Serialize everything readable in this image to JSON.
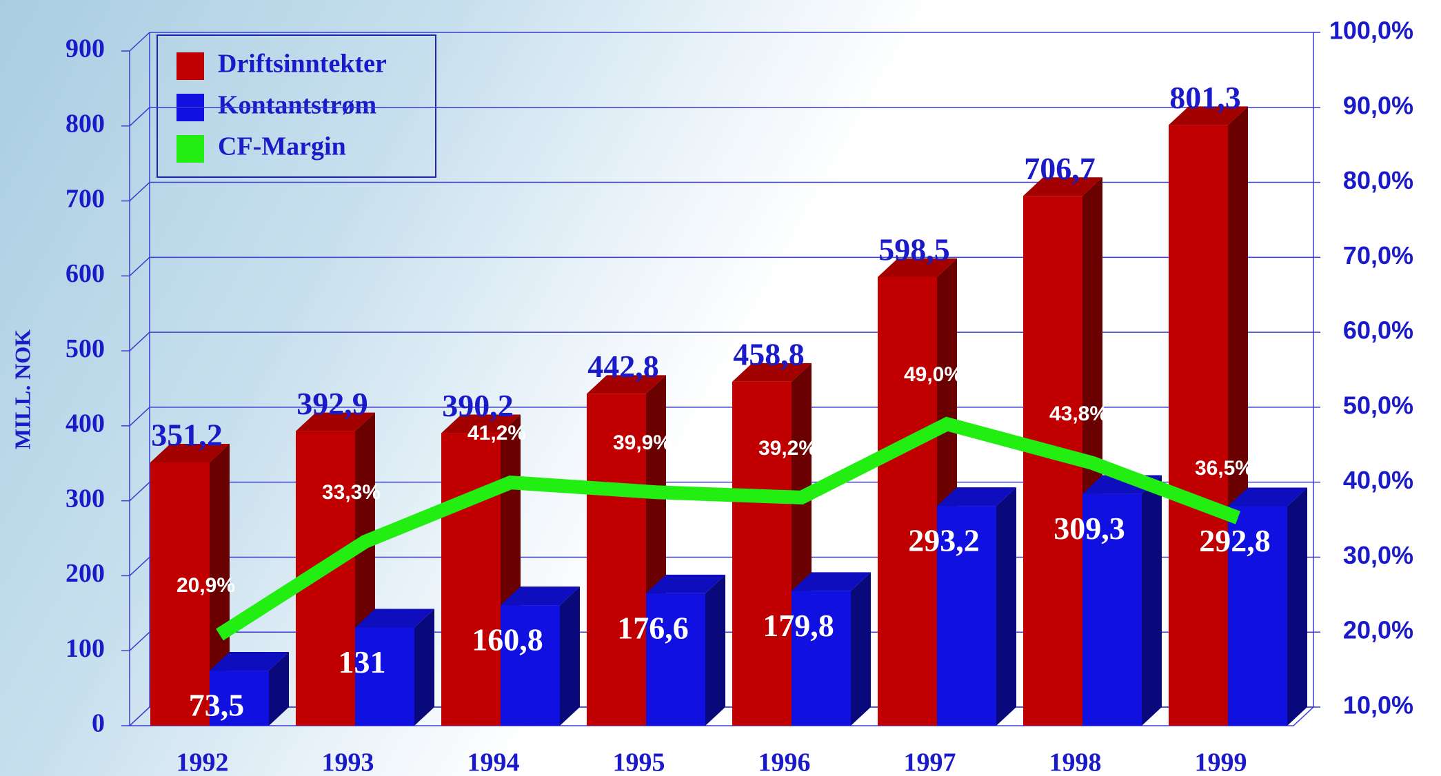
{
  "chart_data": {
    "type": "bar3d_line",
    "y_axis_label": "MILL. NOK",
    "categories": [
      "1992",
      "1993",
      "1994",
      "1995",
      "1996",
      "1997",
      "1998",
      "1999"
    ],
    "series": [
      {
        "name": "Driftsinntekter",
        "color": "#c00000",
        "values": [
          351.2,
          392.9,
          390.2,
          442.8,
          458.8,
          598.5,
          706.7,
          801.3
        ],
        "value_labels": [
          "351,2",
          "392,9",
          "390,2",
          "442,8",
          "458,8",
          "598,5",
          "706,7",
          "801,3"
        ]
      },
      {
        "name": "Kontantstrøm",
        "color": "#1010e0",
        "values": [
          73.5,
          131,
          160.8,
          176.6,
          179.8,
          293.2,
          309.3,
          292.8
        ],
        "value_labels": [
          "73,5",
          "131",
          "160,8",
          "176,6",
          "179,8",
          "293,2",
          "309,3",
          "292,8"
        ]
      },
      {
        "name": "CF-Margin",
        "color": "#22ee11",
        "axis": "y2",
        "values": [
          20.9,
          33.3,
          41.2,
          39.9,
          39.2,
          49.0,
          43.8,
          36.5
        ],
        "value_labels": [
          "20,9%",
          "33,3%",
          "41,2%",
          "39,9%",
          "39,2%",
          "49,0%",
          "43,8%",
          "36,5%"
        ]
      }
    ],
    "ylim": [
      0,
      900
    ],
    "yticks": [
      0,
      100,
      200,
      300,
      400,
      500,
      600,
      700,
      800,
      900
    ],
    "y2lim": [
      10,
      100
    ],
    "y2ticks": [
      {
        "value": 10,
        "label": "10,0%"
      },
      {
        "value": 20,
        "label": "20,0%"
      },
      {
        "value": 30,
        "label": "30,0%"
      },
      {
        "value": 40,
        "label": "40,0%"
      },
      {
        "value": 50,
        "label": "50,0%"
      },
      {
        "value": 60,
        "label": "60,0%"
      },
      {
        "value": 70,
        "label": "70,0%"
      },
      {
        "value": 80,
        "label": "80,0%"
      },
      {
        "value": 90,
        "label": "90,0%"
      },
      {
        "value": 100,
        "label": "100,0%"
      }
    ],
    "grid": true,
    "legend": "top-left"
  }
}
